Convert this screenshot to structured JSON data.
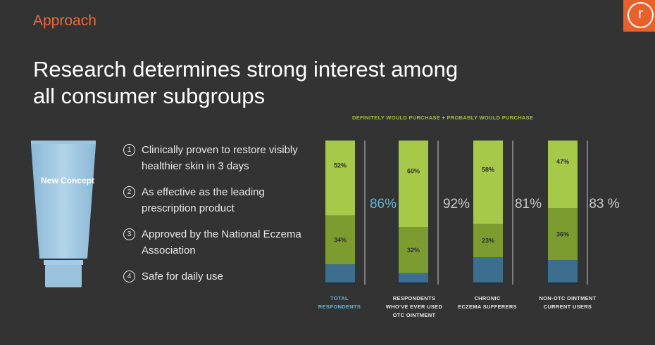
{
  "header": {
    "section": "Approach",
    "logo_letter": "r"
  },
  "title": "Research determines strong interest among all consumer subgroups",
  "product": {
    "label": "New Concept"
  },
  "features": [
    {
      "num": "1",
      "text": "Clinically proven to restore visibly healthier skin in 3 days"
    },
    {
      "num": "2",
      "text": "As effective as the leading prescription product"
    },
    {
      "num": "3",
      "text": "Approved by the National Eczema Association"
    },
    {
      "num": "4",
      "text": "Safe for daily use"
    }
  ],
  "legend": {
    "part1": "DEFINITELY WOULD PURCHASE",
    "plus": "+",
    "part2": "PROBABLY WOULD PURCHASE"
  },
  "colors": {
    "probably": "#a7c94a",
    "definitely": "#7d9c2f",
    "rest": "#3c6e8f",
    "base": "#23323c",
    "category": "#6bb3d8",
    "totals": "#c9c9c9",
    "divider": "#c9c9c9",
    "orange": "#ef6a3c"
  },
  "chart_data": {
    "type": "bar",
    "stacked": true,
    "categories": [
      [
        "TOTAL",
        "RESPONDENTS"
      ],
      [
        "RESPONDENTS",
        "WHO'VE EVER USED",
        "OTC OINTMENT"
      ],
      [
        "CHRONIC",
        "ECZEMA SUFFERERS"
      ],
      [
        "NON-OTC OINTMENT",
        "CURRENT USERS"
      ]
    ],
    "series": [
      {
        "name": "PROBABLY WOULD PURCHASE",
        "values": [
          52,
          60,
          58,
          47
        ]
      },
      {
        "name": "DEFINITELY WOULD PURCHASE",
        "values": [
          34,
          32,
          23,
          36
        ]
      }
    ],
    "bar_labels": [
      [
        "52%",
        "34%"
      ],
      [
        "60%",
        "32%"
      ],
      [
        "58%",
        "23%"
      ],
      [
        "47%",
        "36%"
      ]
    ],
    "totals": [
      "86%",
      "92%",
      "81%",
      "83 %"
    ],
    "ylim": [
      0,
      100
    ]
  }
}
